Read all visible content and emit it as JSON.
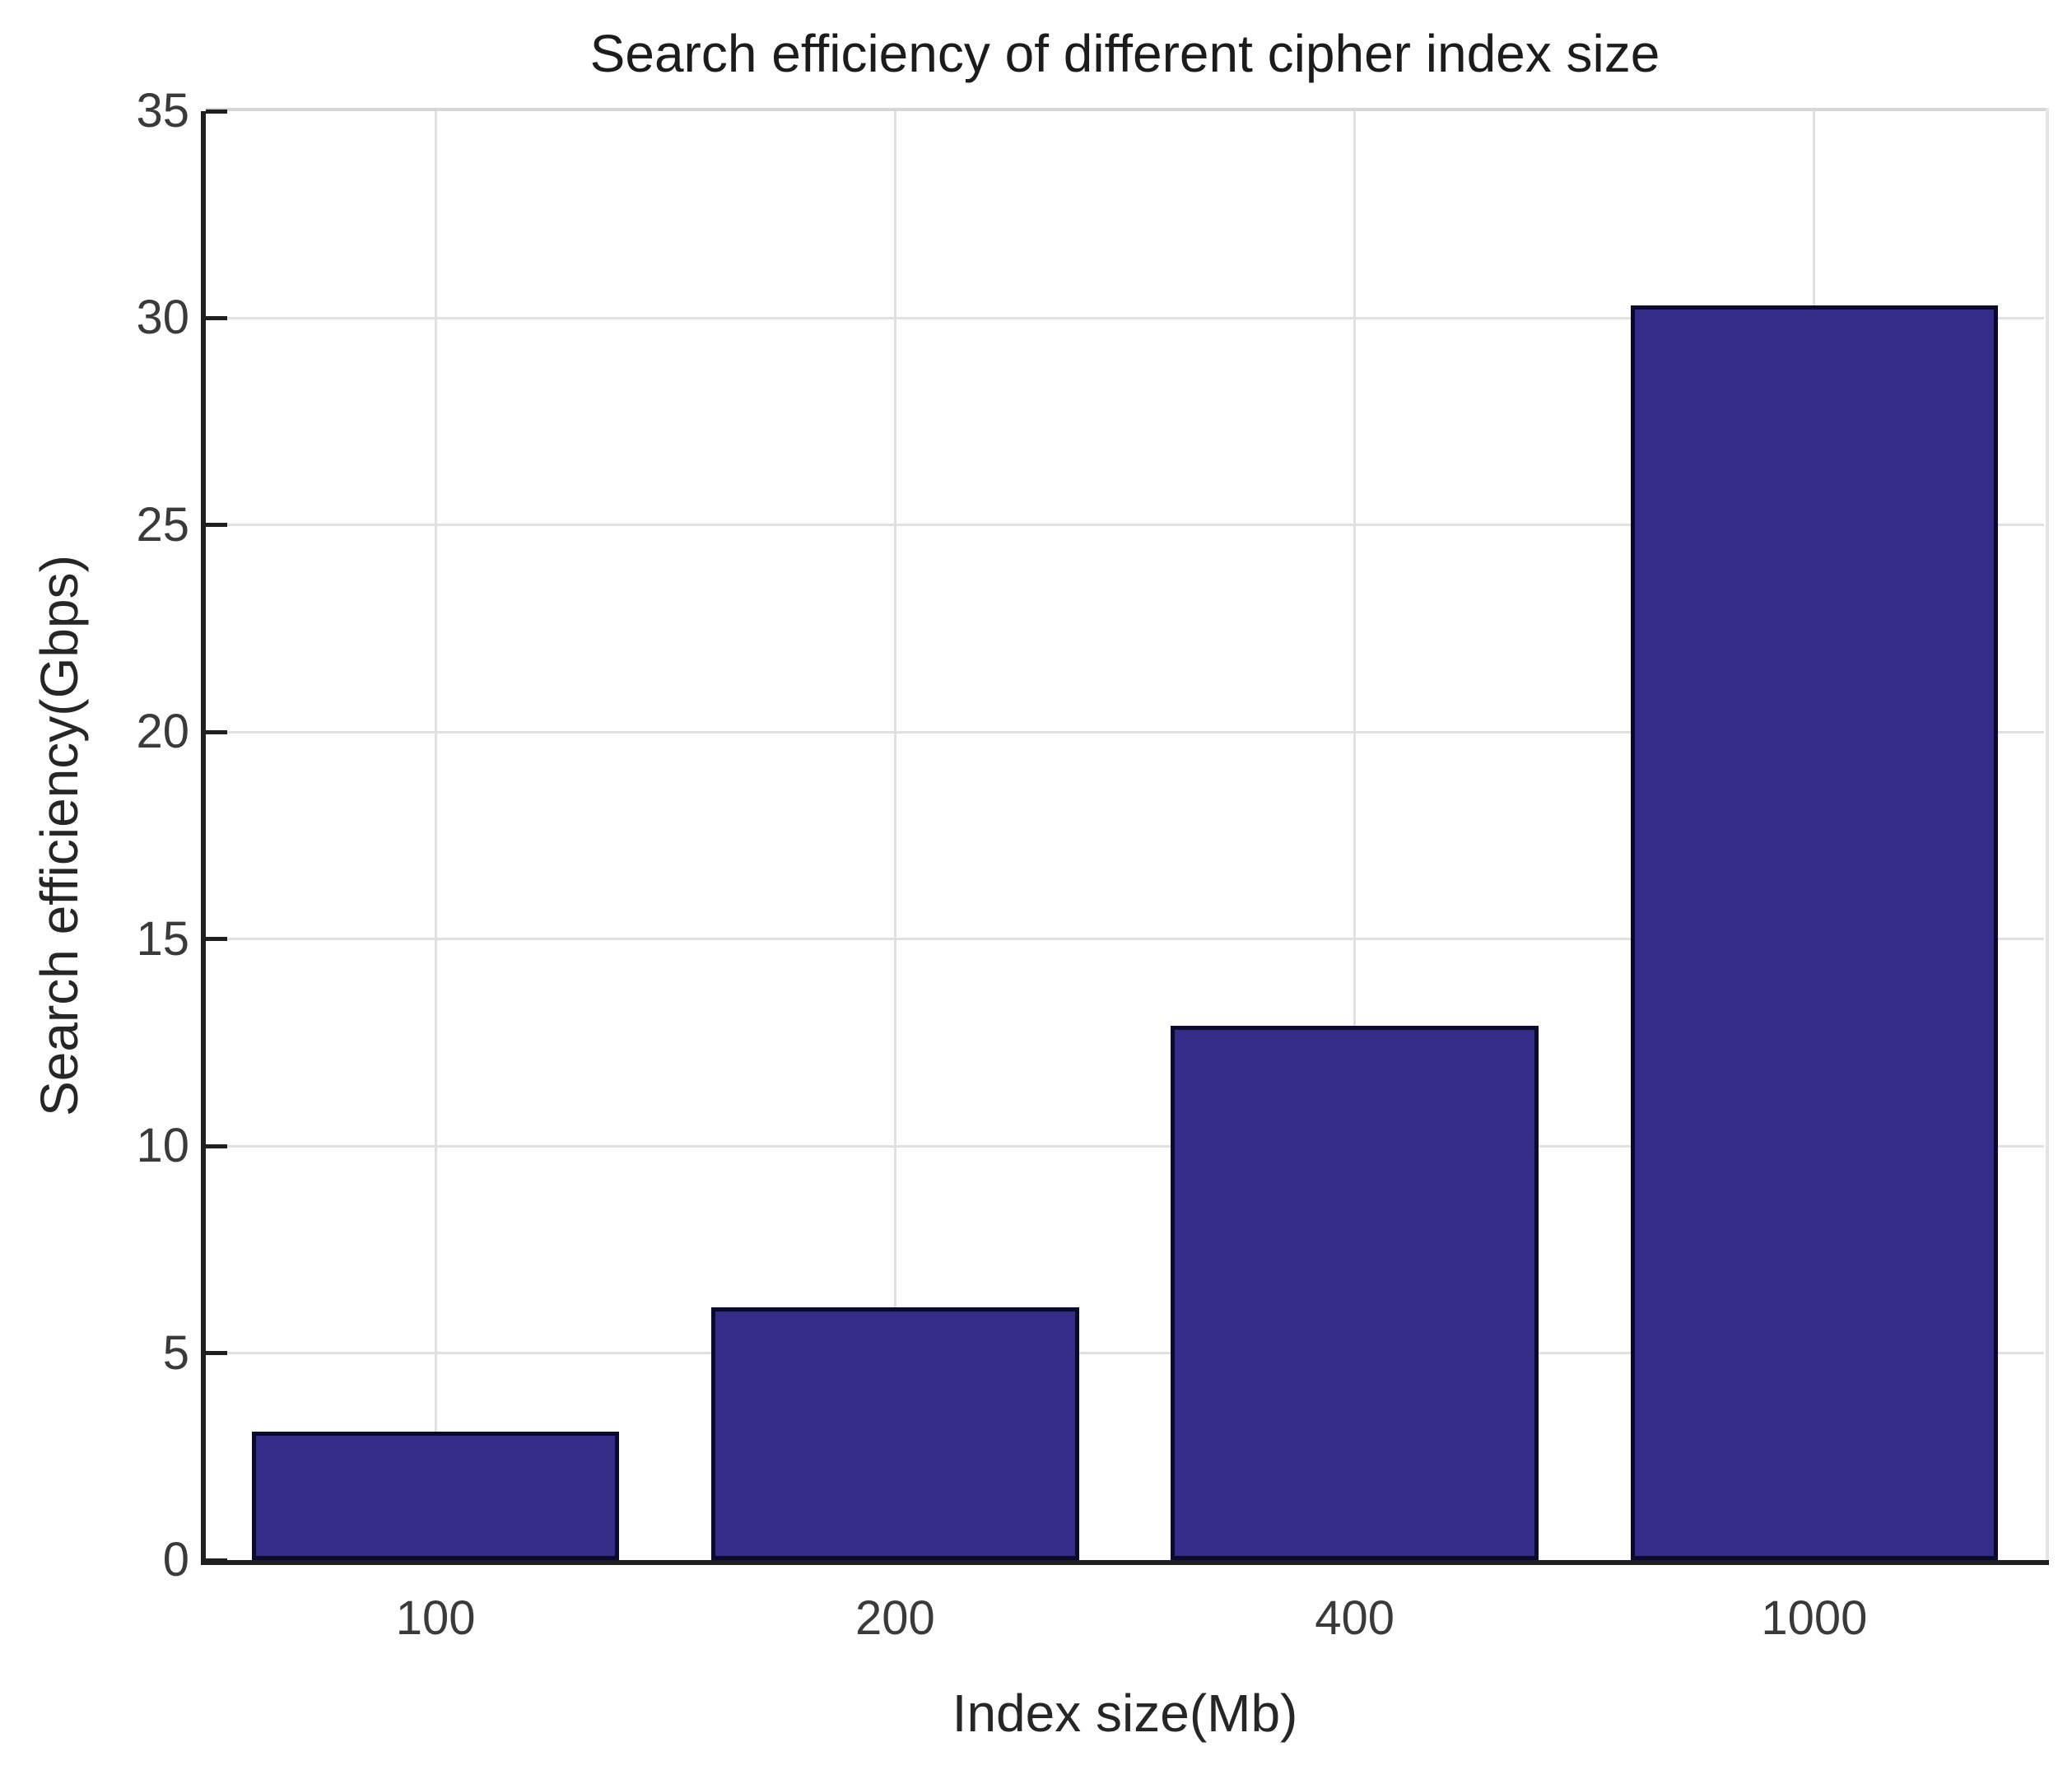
{
  "chart_data": {
    "type": "bar",
    "title": "Search efficiency of different cipher index size",
    "xlabel": "Index size(Mb)",
    "ylabel": "Search efficiency(Gbps)",
    "categories": [
      "100",
      "200",
      "400",
      "1000"
    ],
    "values": [
      3.1,
      6.1,
      12.9,
      30.3
    ],
    "ylim": [
      0,
      35
    ],
    "yticks": [
      0,
      5,
      10,
      15,
      20,
      25,
      30,
      35
    ],
    "grid": "on",
    "legend": "none",
    "bar_width_fraction": 0.8,
    "colors": {
      "bar_fill": "#352c8a",
      "bar_edge": "#0a0a2e",
      "axis_line": "#1f1f1f",
      "box_line": "#d6d6d6",
      "grid_line": "#e0e0e0",
      "tick_text": "#3a3a3a",
      "label_text": "#262626",
      "background": "#ffffff"
    }
  }
}
